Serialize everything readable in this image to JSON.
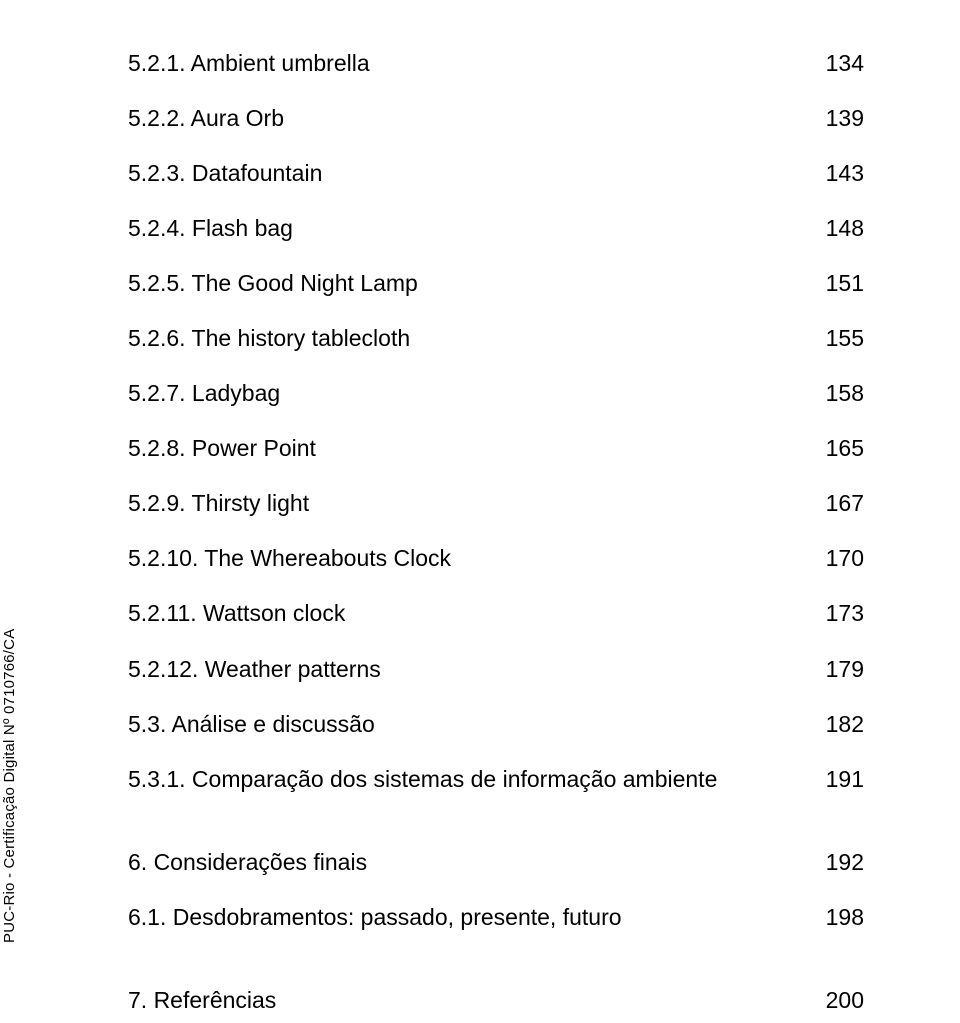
{
  "toc": {
    "group1": [
      {
        "label": "5.2.1. Ambient umbrella",
        "page": "134"
      },
      {
        "label": "5.2.2. Aura Orb",
        "page": "139"
      },
      {
        "label": "5.2.3. Datafountain",
        "page": "143"
      },
      {
        "label": "5.2.4. Flash bag",
        "page": "148"
      },
      {
        "label": "5.2.5. The Good Night Lamp",
        "page": "151"
      },
      {
        "label": "5.2.6. The history tablecloth",
        "page": "155"
      },
      {
        "label": "5.2.7. Ladybag",
        "page": "158"
      },
      {
        "label": "5.2.8. Power Point",
        "page": "165"
      },
      {
        "label": "5.2.9. Thirsty light",
        "page": "167"
      },
      {
        "label": "5.2.10. The Whereabouts Clock",
        "page": "170"
      },
      {
        "label": "5.2.11. Wattson clock",
        "page": "173"
      },
      {
        "label": "5.2.12. Weather patterns",
        "page": "179"
      },
      {
        "label": "5.3. Análise e discussão",
        "page": "182"
      },
      {
        "label": "5.3.1. Comparação dos sistemas de informação ambiente",
        "page": "191"
      }
    ],
    "group2": [
      {
        "label": "6. Considerações finais",
        "page": "192"
      },
      {
        "label": "6.1. Desdobramentos: passado, presente, futuro",
        "page": "198"
      }
    ],
    "group3": [
      {
        "label": "7. Referências",
        "page": "200"
      }
    ]
  },
  "watermark": "PUC-Rio - Certificação Digital Nº 0710766/CA",
  "colors": {
    "background": "#ffffff",
    "text": "#000000"
  },
  "typography": {
    "toc_fontsize": 23,
    "watermark_fontsize": 15,
    "font_family": "Arial"
  }
}
